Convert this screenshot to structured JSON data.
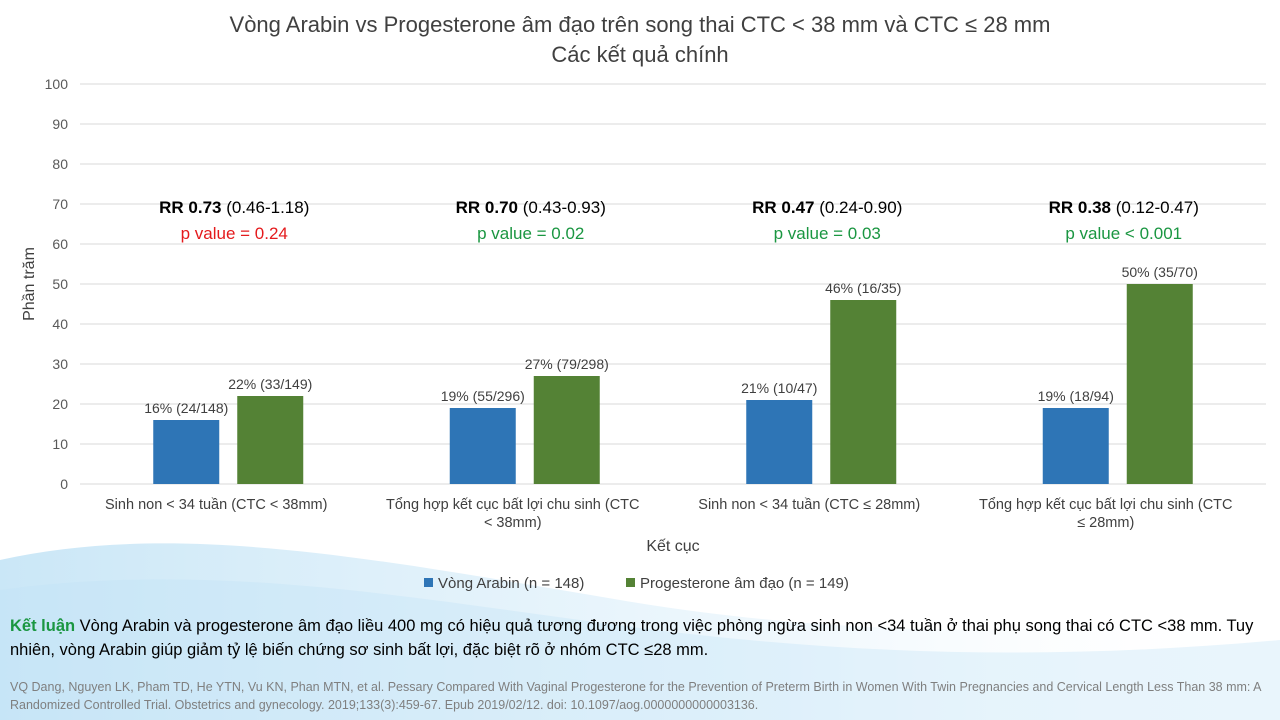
{
  "chart_data": {
    "type": "bar",
    "title": [
      "Vòng Arabin vs Progesterone âm đạo trên song thai CTC < 38 mm và CTC ≤ 28 mm",
      "Các kết quả chính"
    ],
    "xlabel": "Kết cục",
    "ylabel": "Phần trăm",
    "ylim": [
      0,
      100
    ],
    "yticks": [
      "0",
      "10",
      "20",
      "30",
      "40",
      "50",
      "60",
      "70",
      "80",
      "90",
      "100"
    ],
    "grid": true,
    "legend_position": "bottom",
    "categories": [
      [
        "Sinh non < 34 tuần  (CTC < 38mm)"
      ],
      [
        "Tổng hợp kết cục bất lợi chu sinh  (CTC",
        "< 38mm)"
      ],
      [
        "Sinh non < 34 tuần  (CTC ≤ 28mm)"
      ],
      [
        "Tổng hợp kết cục bất lợi chu sinh  (CTC",
        "≤ 28mm)"
      ]
    ],
    "series": [
      {
        "name": "Vòng Arabin (n = 148)",
        "color": "#2e75b6",
        "values": [
          16,
          19,
          21,
          19
        ],
        "labels": [
          "16% (24/148)",
          "19% (55/296)",
          "21% (10/47)",
          "19% (18/94)"
        ]
      },
      {
        "name": "Progesterone âm đạo (n = 149)",
        "color": "#548235",
        "values": [
          22,
          27,
          46,
          50
        ],
        "labels": [
          "22% (33/149)",
          "27% (79/298)",
          "46% (16/35)",
          "50% (35/70)"
        ]
      }
    ],
    "annotations": [
      {
        "rr": "RR 0.73",
        "ci": " (0.46-1.18)",
        "p": "p value = 0.24",
        "p_color": "#e41a1c"
      },
      {
        "rr": "RR 0.70",
        "ci": " (0.43-0.93)",
        "p": "p value = 0.02",
        "p_color": "#1a9641"
      },
      {
        "rr": "RR 0.47",
        "ci": " (0.24-0.90)",
        "p": "p value = 0.03",
        "p_color": "#1a9641"
      },
      {
        "rr": "RR 0.38",
        "ci": " (0.12-0.47)",
        "p": "p value < 0.001",
        "p_color": "#1a9641"
      }
    ]
  },
  "conclusion": {
    "lead": "Kết luận",
    "text": " Vòng Arabin và progesterone âm đạo liều 400 mg có hiệu quả tương đương trong việc phòng ngừa sinh non <34 tuần ở thai phụ song thai có CTC <38 mm. Tuy nhiên, vòng Arabin giúp giảm tỷ lệ biến chứng sơ sinh bất lợi, đặc biệt rõ ở nhóm CTC ≤28 mm."
  },
  "citation": "VQ Dang, Nguyen LK, Pham TD, He YTN, Vu KN, Phan MTN, et al. Pessary Compared With Vaginal Progesterone for the Prevention of Preterm Birth in Women With Twin Pregnancies and Cervical Length Less Than 38 mm: A Randomized Controlled Trial. Obstetrics and gynecology. 2019;133(3):459-67. Epub 2019/02/12. doi: 10.1097/aog.0000000000003136."
}
